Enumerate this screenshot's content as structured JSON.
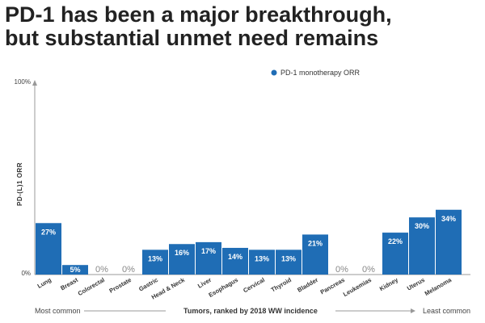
{
  "header": {
    "title_line1": "PD-1 has been a major breakthrough,",
    "title_line2": "but substantial unmet need remains"
  },
  "colors": {
    "bar": "#1f6db5",
    "axis": "#999999"
  },
  "chart_data": {
    "type": "bar",
    "categories": [
      "Lung",
      "Breast",
      "Colorectal",
      "Prostate",
      "Gastric",
      "Head & Neck",
      "Liver",
      "Esophagus",
      "Cervical",
      "Thyroid",
      "Bladder",
      "Pancreas",
      "Leukemias",
      "Kidney",
      "Uterus",
      "Melanoma"
    ],
    "series": [
      {
        "name": "PD-1 monotherapy ORR",
        "values": [
          27,
          5,
          0,
          0,
          13,
          16,
          17,
          14,
          13,
          13,
          21,
          0,
          0,
          22,
          30,
          34
        ]
      }
    ],
    "value_labels": [
      "27%",
      "5%",
      "0%",
      "0%",
      "13%",
      "16%",
      "17%",
      "14%",
      "13%",
      "13%",
      "21%",
      "0%",
      "0%",
      "22%",
      "30%",
      "34%"
    ],
    "ylabel": "PD-(L)1 ORR",
    "ylim": [
      0,
      100
    ],
    "yticks": [
      "0%",
      "100%"
    ],
    "legend": {
      "label": "PD-1 monotherapy ORR",
      "position": "top-right"
    },
    "xaxis": {
      "left_note": "Most common",
      "center_label": "Tumors, ranked by 2018 WW incidence",
      "right_note": "Least common"
    },
    "grid": false
  }
}
